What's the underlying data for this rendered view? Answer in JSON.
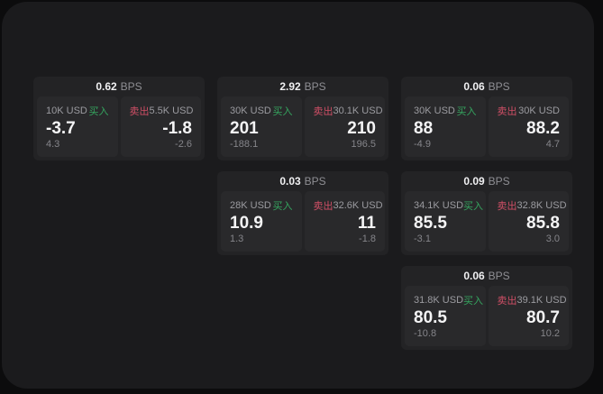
{
  "labels": {
    "bps_unit": "BPS",
    "buy": "买入",
    "sell": "卖出"
  },
  "colors": {
    "page_background": "#0c0c0d",
    "panel_background": "#1b1b1d",
    "card_background": "#232325",
    "tile_background": "#29292b",
    "buy_green": "#35a55f",
    "sell_red": "#d04f66",
    "value_white": "#f4f4f5",
    "muted_gray": "#9b9ba0"
  },
  "cards": [
    {
      "bps": "0.62",
      "buy": {
        "amount": "10K USD",
        "value": "-3.7",
        "sub": "4.3"
      },
      "sell": {
        "amount": "5.5K USD",
        "value": "-1.8",
        "sub": "-2.6"
      }
    },
    {
      "bps": "2.92",
      "buy": {
        "amount": "30K USD",
        "value": "201",
        "sub": "-188.1"
      },
      "sell": {
        "amount": "30.1K USD",
        "value": "210",
        "sub": "196.5"
      }
    },
    {
      "bps": "0.06",
      "buy": {
        "amount": "30K USD",
        "value": "88",
        "sub": "-4.9"
      },
      "sell": {
        "amount": "30K USD",
        "value": "88.2",
        "sub": "4.7"
      }
    },
    {
      "bps": "0.03",
      "buy": {
        "amount": "28K USD",
        "value": "10.9",
        "sub": "1.3"
      },
      "sell": {
        "amount": "32.6K USD",
        "value": "11",
        "sub": "-1.8"
      }
    },
    {
      "bps": "0.09",
      "buy": {
        "amount": "34.1K USD",
        "value": "85.5",
        "sub": "-3.1"
      },
      "sell": {
        "amount": "32.8K USD",
        "value": "85.8",
        "sub": "3.0"
      }
    },
    {
      "bps": "0.06",
      "buy": {
        "amount": "31.8K USD",
        "value": "80.5",
        "sub": "-10.8"
      },
      "sell": {
        "amount": "39.1K USD",
        "value": "80.7",
        "sub": "10.2"
      }
    }
  ]
}
